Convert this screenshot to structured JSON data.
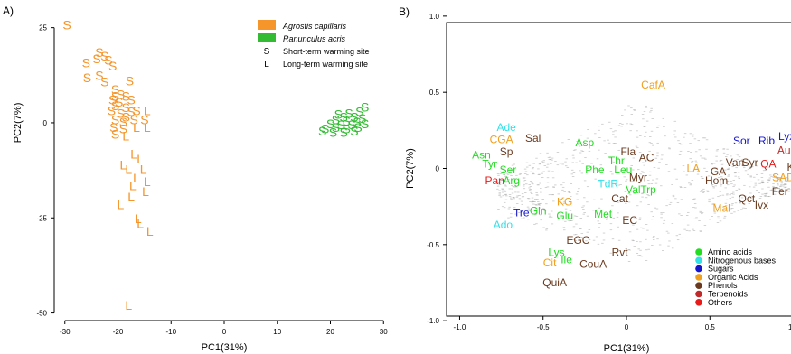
{
  "figure": {
    "panel_a_letter": "A)",
    "panel_b_letter": "B)"
  },
  "colors": {
    "agrostis": "#f5952a",
    "ranunculus": "#33bb33",
    "amino_acids": "#22dd22",
    "nitrogenous_bases": "#33e0e8",
    "sugars": "#1515cc",
    "organic_acids": "#f0a020",
    "phenols": "#6b3a1e",
    "terpenoids": "#c02a2a",
    "others": "#e81a1a",
    "cloud": "#9a9a9a"
  },
  "chart_data": [
    {
      "id": "panel-a",
      "type": "scatter",
      "xlabel": "PC1(31%)",
      "ylabel": "PC2(7%)",
      "xlim": [
        -32,
        32
      ],
      "ylim": [
        -52,
        28
      ],
      "xticks": [
        -30,
        -20,
        -10,
        0,
        10,
        20,
        30
      ],
      "yticks": [
        -50,
        -25,
        0,
        25
      ],
      "legend": {
        "placement": "top-right",
        "entries": [
          {
            "kind": "swatch",
            "label": "Agrostis capillaris",
            "color": "#f5952a",
            "italic": true
          },
          {
            "kind": "swatch",
            "label": "Ranunculus acris",
            "color": "#33bb33",
            "italic": true
          },
          {
            "kind": "symbol",
            "symbol": "S",
            "label": "Short-term warming site"
          },
          {
            "kind": "symbol",
            "symbol": "L",
            "label": "Long-term warming site"
          }
        ]
      },
      "series": [
        {
          "name": "Agrostis capillaris",
          "color": "#f5952a",
          "points": [
            {
              "x": -29.6,
              "y": 25.8,
              "m": "S"
            },
            {
              "x": -23.5,
              "y": 18.5,
              "m": "S"
            },
            {
              "x": -22.5,
              "y": 17.5,
              "m": "S"
            },
            {
              "x": -21.8,
              "y": 16.5,
              "m": "S"
            },
            {
              "x": -24,
              "y": 16.8,
              "m": "S"
            },
            {
              "x": -26,
              "y": 15.8,
              "m": "S"
            },
            {
              "x": -21,
              "y": 15,
              "m": "S"
            },
            {
              "x": -23.5,
              "y": 12.5,
              "m": "S"
            },
            {
              "x": -17.8,
              "y": 11,
              "m": "S"
            },
            {
              "x": -25.8,
              "y": 11.8,
              "m": "S"
            },
            {
              "x": -22.5,
              "y": 10.8,
              "m": "S"
            },
            {
              "x": -20.5,
              "y": 8.8,
              "m": "S"
            },
            {
              "x": -19.5,
              "y": 7.5,
              "m": "S"
            },
            {
              "x": -20.5,
              "y": 7,
              "m": "S"
            },
            {
              "x": -18.5,
              "y": 7,
              "m": "S"
            },
            {
              "x": -21,
              "y": 6,
              "m": "S"
            },
            {
              "x": -19.8,
              "y": 5.5,
              "m": "S"
            },
            {
              "x": -17.5,
              "y": 6,
              "m": "S"
            },
            {
              "x": -20.5,
              "y": 4.5,
              "m": "S"
            },
            {
              "x": -18.5,
              "y": 4,
              "m": "S"
            },
            {
              "x": -21.2,
              "y": 3.2,
              "m": "S"
            },
            {
              "x": -19.5,
              "y": 2.5,
              "m": "S"
            },
            {
              "x": -17.5,
              "y": 3,
              "m": "S"
            },
            {
              "x": -16.5,
              "y": 3.2,
              "m": "S"
            },
            {
              "x": -14.5,
              "y": 3.2,
              "m": "L"
            },
            {
              "x": -18.5,
              "y": 1.5,
              "m": "S"
            },
            {
              "x": -20.5,
              "y": 0.8,
              "m": "S"
            },
            {
              "x": -19,
              "y": 0.2,
              "m": "S"
            },
            {
              "x": -17,
              "y": 0.8,
              "m": "S"
            },
            {
              "x": -15,
              "y": 0.8,
              "m": "S"
            },
            {
              "x": -20.8,
              "y": -1.2,
              "m": "S"
            },
            {
              "x": -19,
              "y": -1.5,
              "m": "S"
            },
            {
              "x": -16.5,
              "y": -1.2,
              "m": "L"
            },
            {
              "x": -14.5,
              "y": -1.2,
              "m": "L"
            },
            {
              "x": -20.5,
              "y": -3,
              "m": "S"
            },
            {
              "x": -18.5,
              "y": -3.5,
              "m": "L"
            },
            {
              "x": -17,
              "y": -8.2,
              "m": "L"
            },
            {
              "x": -15.8,
              "y": -9.5,
              "m": "L"
            },
            {
              "x": -19,
              "y": -11,
              "m": "L"
            },
            {
              "x": -18,
              "y": -12.2,
              "m": "L"
            },
            {
              "x": -15.2,
              "y": -12.2,
              "m": "L"
            },
            {
              "x": -16.5,
              "y": -14.5,
              "m": "L"
            },
            {
              "x": -14.5,
              "y": -15.5,
              "m": "L"
            },
            {
              "x": -17.2,
              "y": -16.5,
              "m": "L"
            },
            {
              "x": -14.8,
              "y": -18,
              "m": "L"
            },
            {
              "x": -17.5,
              "y": -19.5,
              "m": "L"
            },
            {
              "x": -19.5,
              "y": -21.5,
              "m": "L"
            },
            {
              "x": -16.2,
              "y": -25.2,
              "m": "L"
            },
            {
              "x": -15.8,
              "y": -26.5,
              "m": "L"
            },
            {
              "x": -14,
              "y": -28.5,
              "m": "L"
            },
            {
              "x": -18,
              "y": -48,
              "m": "L"
            }
          ]
        },
        {
          "name": "Ranunculus acris",
          "color": "#33bb33",
          "points": [
            {
              "x": 26.5,
              "y": 4.2,
              "m": "S"
            },
            {
              "x": 25.5,
              "y": 3,
              "m": "S"
            },
            {
              "x": 23.5,
              "y": 2.5,
              "m": "S"
            },
            {
              "x": 22.5,
              "y": 1.5,
              "m": "S"
            },
            {
              "x": 24.5,
              "y": 1.5,
              "m": "S"
            },
            {
              "x": 26,
              "y": 1.2,
              "m": "S"
            },
            {
              "x": 21,
              "y": 0.8,
              "m": "S"
            },
            {
              "x": 23,
              "y": 0.5,
              "m": "S"
            },
            {
              "x": 25,
              "y": 0.2,
              "m": "S"
            },
            {
              "x": 20,
              "y": -0.2,
              "m": "S"
            },
            {
              "x": 22,
              "y": -0.5,
              "m": "S"
            },
            {
              "x": 24,
              "y": -0.5,
              "m": "S"
            },
            {
              "x": 26.5,
              "y": -0.2,
              "m": "S"
            },
            {
              "x": 19,
              "y": -1.5,
              "m": "S"
            },
            {
              "x": 21,
              "y": -1.2,
              "m": "S"
            },
            {
              "x": 23,
              "y": -1.5,
              "m": "S"
            },
            {
              "x": 25.2,
              "y": -1.2,
              "m": "S"
            },
            {
              "x": 18.5,
              "y": -2.2,
              "m": "S"
            },
            {
              "x": 20.5,
              "y": -2.5,
              "m": "S"
            },
            {
              "x": 22.5,
              "y": -2.5,
              "m": "S"
            },
            {
              "x": 24.5,
              "y": -2.2,
              "m": "S"
            },
            {
              "x": 21.5,
              "y": 2.2,
              "m": "S"
            }
          ]
        }
      ]
    },
    {
      "id": "panel-b",
      "type": "scatter",
      "xlabel": "PC1(31%)",
      "ylabel": "PC2(7%)",
      "xlim": [
        -1.1,
        1.1
      ],
      "ylim": [
        -1.1,
        1.1
      ],
      "xticks": [
        -1.0,
        -0.5,
        0,
        0.5,
        1.0
      ],
      "yticks": [
        -1.0,
        -0.5,
        0,
        0.5,
        1.0
      ],
      "legend": {
        "placement": "bottom-right",
        "entries": [
          {
            "label": "Amino acids",
            "color": "#22dd22"
          },
          {
            "label": "Nitrogenous bases",
            "color": "#33e0e8"
          },
          {
            "label": "Sugars",
            "color": "#1515cc"
          },
          {
            "label": "Organic Acids",
            "color": "#f0a020"
          },
          {
            "label": "Phenols",
            "color": "#6b3a1e"
          },
          {
            "label": "Terpenoids",
            "color": "#c02a2a"
          },
          {
            "label": "Others",
            "color": "#e81a1a"
          }
        ]
      },
      "labels": [
        {
          "text": "CafA",
          "x": 0.16,
          "y": 0.55,
          "c": "organic_acids"
        },
        {
          "text": "Ade",
          "x": -0.72,
          "y": 0.27,
          "c": "nitrogenous_bases"
        },
        {
          "text": "CGA",
          "x": -0.75,
          "y": 0.19,
          "c": "organic_acids"
        },
        {
          "text": "Sal",
          "x": -0.56,
          "y": 0.2,
          "c": "phenols"
        },
        {
          "text": "Sp",
          "x": -0.72,
          "y": 0.11,
          "c": "phenols"
        },
        {
          "text": "Asn",
          "x": -0.87,
          "y": 0.09,
          "c": "amino_acids"
        },
        {
          "text": "Tyr",
          "x": -0.82,
          "y": 0.03,
          "c": "amino_acids"
        },
        {
          "text": "Ser",
          "x": -0.71,
          "y": -0.01,
          "c": "amino_acids"
        },
        {
          "text": "Pan",
          "x": -0.79,
          "y": -0.08,
          "c": "others"
        },
        {
          "text": "Arg",
          "x": -0.69,
          "y": -0.08,
          "c": "amino_acids"
        },
        {
          "text": "Asp",
          "x": -0.25,
          "y": 0.17,
          "c": "amino_acids"
        },
        {
          "text": "Fla",
          "x": 0.01,
          "y": 0.11,
          "c": "phenols"
        },
        {
          "text": "AC",
          "x": 0.12,
          "y": 0.07,
          "c": "phenols"
        },
        {
          "text": "Thr",
          "x": -0.06,
          "y": 0.05,
          "c": "amino_acids"
        },
        {
          "text": "Phe",
          "x": -0.19,
          "y": -0.01,
          "c": "amino_acids"
        },
        {
          "text": "Leu",
          "x": -0.02,
          "y": -0.01,
          "c": "amino_acids"
        },
        {
          "text": "Myr",
          "x": 0.07,
          "y": -0.06,
          "c": "phenols"
        },
        {
          "text": "TdR",
          "x": -0.11,
          "y": -0.1,
          "c": "nitrogenous_bases"
        },
        {
          "text": "Val",
          "x": 0.04,
          "y": -0.14,
          "c": "amino_acids"
        },
        {
          "text": "Trp",
          "x": 0.13,
          "y": -0.14,
          "c": "amino_acids"
        },
        {
          "text": "Cat",
          "x": -0.04,
          "y": -0.2,
          "c": "phenols"
        },
        {
          "text": "KG",
          "x": -0.37,
          "y": -0.22,
          "c": "organic_acids"
        },
        {
          "text": "Glu",
          "x": -0.37,
          "y": -0.31,
          "c": "amino_acids"
        },
        {
          "text": "Met",
          "x": -0.14,
          "y": -0.3,
          "c": "amino_acids"
        },
        {
          "text": "EC",
          "x": 0.02,
          "y": -0.34,
          "c": "phenols"
        },
        {
          "text": "Gln",
          "x": -0.53,
          "y": -0.28,
          "c": "amino_acids"
        },
        {
          "text": "Tre",
          "x": -0.63,
          "y": -0.29,
          "c": "sugars"
        },
        {
          "text": "Ado",
          "x": -0.74,
          "y": -0.37,
          "c": "nitrogenous_bases"
        },
        {
          "text": "EGC",
          "x": -0.29,
          "y": -0.47,
          "c": "phenols"
        },
        {
          "text": "Lys",
          "x": -0.42,
          "y": -0.55,
          "c": "amino_acids"
        },
        {
          "text": "Rvt",
          "x": -0.04,
          "y": -0.55,
          "c": "phenols"
        },
        {
          "text": "Cit",
          "x": -0.46,
          "y": -0.62,
          "c": "organic_acids"
        },
        {
          "text": "Ile",
          "x": -0.36,
          "y": -0.6,
          "c": "amino_acids"
        },
        {
          "text": "CouA",
          "x": -0.2,
          "y": -0.63,
          "c": "phenols"
        },
        {
          "text": "QuiA",
          "x": -0.43,
          "y": -0.75,
          "c": "phenols"
        },
        {
          "text": "LA",
          "x": 0.4,
          "y": 0,
          "c": "organic_acids"
        },
        {
          "text": "GA",
          "x": 0.55,
          "y": -0.02,
          "c": "phenols"
        },
        {
          "text": "Hom",
          "x": 0.54,
          "y": -0.08,
          "c": "phenols"
        },
        {
          "text": "Van",
          "x": 0.65,
          "y": 0.04,
          "c": "phenols"
        },
        {
          "text": "Syr",
          "x": 0.74,
          "y": 0.04,
          "c": "phenols"
        },
        {
          "text": "Sor",
          "x": 0.69,
          "y": 0.18,
          "c": "sugars"
        },
        {
          "text": "Rib",
          "x": 0.84,
          "y": 0.18,
          "c": "sugars"
        },
        {
          "text": "Lyx",
          "x": 0.96,
          "y": 0.21,
          "c": "sugars"
        },
        {
          "text": "Auc",
          "x": 0.96,
          "y": 0.12,
          "c": "terpenoids"
        },
        {
          "text": "QA",
          "x": 0.85,
          "y": 0.03,
          "c": "others"
        },
        {
          "text": "Kae",
          "x": 1.02,
          "y": 0.01,
          "c": "phenols"
        },
        {
          "text": "SAD",
          "x": 0.94,
          "y": -0.06,
          "c": "organic_acids"
        },
        {
          "text": "Fer",
          "x": 0.92,
          "y": -0.15,
          "c": "phenols"
        },
        {
          "text": "Qct",
          "x": 0.72,
          "y": -0.2,
          "c": "phenols"
        },
        {
          "text": "Ivx",
          "x": 0.81,
          "y": -0.24,
          "c": "phenols"
        },
        {
          "text": "Mal",
          "x": 0.57,
          "y": -0.26,
          "c": "organic_acids"
        }
      ]
    }
  ]
}
